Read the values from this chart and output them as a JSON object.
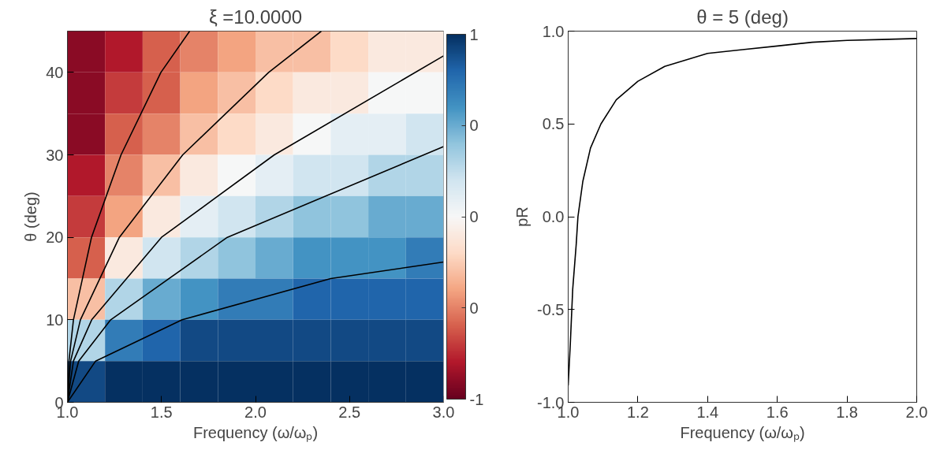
{
  "chart_data": [
    {
      "type": "heatmap",
      "title": "ξ =10.0000",
      "xlabel": "Frequency (ω/ωₚ)",
      "ylabel": "θ (deg)",
      "x": [
        1.1,
        1.3,
        1.5,
        1.7,
        1.9,
        2.1,
        2.3,
        2.5,
        2.7,
        2.9
      ],
      "y": [
        42.5,
        37.5,
        32.5,
        27.5,
        22.5,
        17.5,
        12.5,
        7.5,
        2.5
      ],
      "cells": [
        [
          -0.9,
          -0.8,
          -0.6,
          -0.5,
          -0.4,
          -0.3,
          -0.3,
          -0.2,
          -0.1,
          -0.1
        ],
        [
          -0.9,
          -0.7,
          -0.6,
          -0.4,
          -0.3,
          -0.2,
          -0.1,
          -0.1,
          0.0,
          0.0
        ],
        [
          -0.9,
          -0.6,
          -0.5,
          -0.3,
          -0.2,
          -0.1,
          0.0,
          0.1,
          0.1,
          0.2
        ],
        [
          -0.8,
          -0.5,
          -0.3,
          -0.1,
          0.0,
          0.1,
          0.2,
          0.2,
          0.3,
          0.3
        ],
        [
          -0.7,
          -0.4,
          -0.1,
          0.1,
          0.2,
          0.3,
          0.4,
          0.4,
          0.5,
          0.5
        ],
        [
          -0.6,
          -0.1,
          0.2,
          0.3,
          0.4,
          0.5,
          0.6,
          0.6,
          0.6,
          0.7
        ],
        [
          -0.3,
          0.3,
          0.5,
          0.6,
          0.7,
          0.7,
          0.8,
          0.8,
          0.8,
          0.8
        ],
        [
          0.3,
          0.7,
          0.8,
          0.9,
          0.9,
          0.9,
          0.9,
          0.9,
          0.9,
          0.9
        ],
        [
          0.9,
          1.0,
          1.0,
          1.0,
          1.0,
          1.0,
          1.0,
          1.0,
          1.0,
          1.0
        ]
      ],
      "clim": [
        -1,
        1
      ],
      "cticks": [
        {
          "value": -1,
          "label": "-1"
        },
        {
          "value": -0.5,
          "label": "0"
        },
        {
          "value": 0,
          "label": "0"
        },
        {
          "value": 0.5,
          "label": "0"
        },
        {
          "value": 1,
          "label": "1"
        }
      ],
      "xlim": [
        1,
        3
      ],
      "ylim": [
        0,
        45
      ],
      "xticks": [
        {
          "value": 1,
          "label": "1.0"
        },
        {
          "value": 1.5,
          "label": "1.5"
        },
        {
          "value": 2,
          "label": "2.0"
        },
        {
          "value": 2.5,
          "label": "2.5"
        },
        {
          "value": 3,
          "label": "3.0"
        }
      ],
      "yticks": [
        0,
        10,
        20,
        30,
        40
      ],
      "series": [
        {
          "type": "line",
          "color": "#000000",
          "x": [
            1.0,
            1.008,
            1.032,
            1.128,
            1.285,
            1.497,
            1.65
          ],
          "values": [
            0,
            5,
            10,
            20,
            30,
            40,
            45
          ]
        },
        {
          "type": "line",
          "color": "#000000",
          "x": [
            1.0,
            1.017,
            1.069,
            1.276,
            1.613,
            2.07,
            2.35
          ],
          "values": [
            0,
            5,
            10,
            20,
            30,
            40,
            45
          ]
        },
        {
          "type": "line",
          "color": "#000000",
          "x": [
            1.0,
            1.032,
            1.129,
            1.5,
            2.1,
            3.0
          ],
          "values": [
            0,
            5,
            10,
            20,
            30,
            42
          ]
        },
        {
          "type": "line",
          "color": "#000000",
          "x": [
            1.0,
            1.06,
            1.23,
            1.85,
            3.0
          ],
          "values": [
            0,
            5,
            10,
            20,
            31
          ]
        },
        {
          "type": "line",
          "color": "#000000",
          "x": [
            1.0,
            1.15,
            1.61,
            2.4,
            3.0
          ],
          "values": [
            0,
            5,
            10,
            15,
            17
          ]
        }
      ]
    },
    {
      "type": "line",
      "title": "θ = 5 (deg)",
      "xlabel": "Frequency (ω/ωₚ)",
      "ylabel": "pR",
      "x": [
        1.0,
        1.006,
        1.013,
        1.023,
        1.028,
        1.042,
        1.064,
        1.094,
        1.138,
        1.2,
        1.277,
        1.4,
        1.5,
        1.6,
        1.7,
        1.8,
        1.9,
        2.0
      ],
      "series": [
        {
          "color": "#000000",
          "values": [
            -0.91,
            -0.69,
            -0.39,
            -0.15,
            0.0,
            0.19,
            0.37,
            0.5,
            0.63,
            0.73,
            0.81,
            0.88,
            0.9,
            0.92,
            0.94,
            0.95,
            0.955,
            0.96
          ]
        }
      ],
      "xlim": [
        1,
        2
      ],
      "ylim": [
        -1,
        1
      ],
      "xticks": [
        {
          "value": 1,
          "label": "1.0"
        },
        {
          "value": 1.2,
          "label": "1.2"
        },
        {
          "value": 1.4,
          "label": "1.4"
        },
        {
          "value": 1.6,
          "label": "1.6"
        },
        {
          "value": 1.8,
          "label": "1.8"
        },
        {
          "value": 2,
          "label": "2.0"
        }
      ],
      "yticks": [
        {
          "value": -1,
          "label": "-1.0"
        },
        {
          "value": -0.5,
          "label": "-0.5"
        },
        {
          "value": 0,
          "label": "0.0"
        },
        {
          "value": 0.5,
          "label": "0.5"
        },
        {
          "value": 1,
          "label": "1.0"
        }
      ]
    }
  ]
}
